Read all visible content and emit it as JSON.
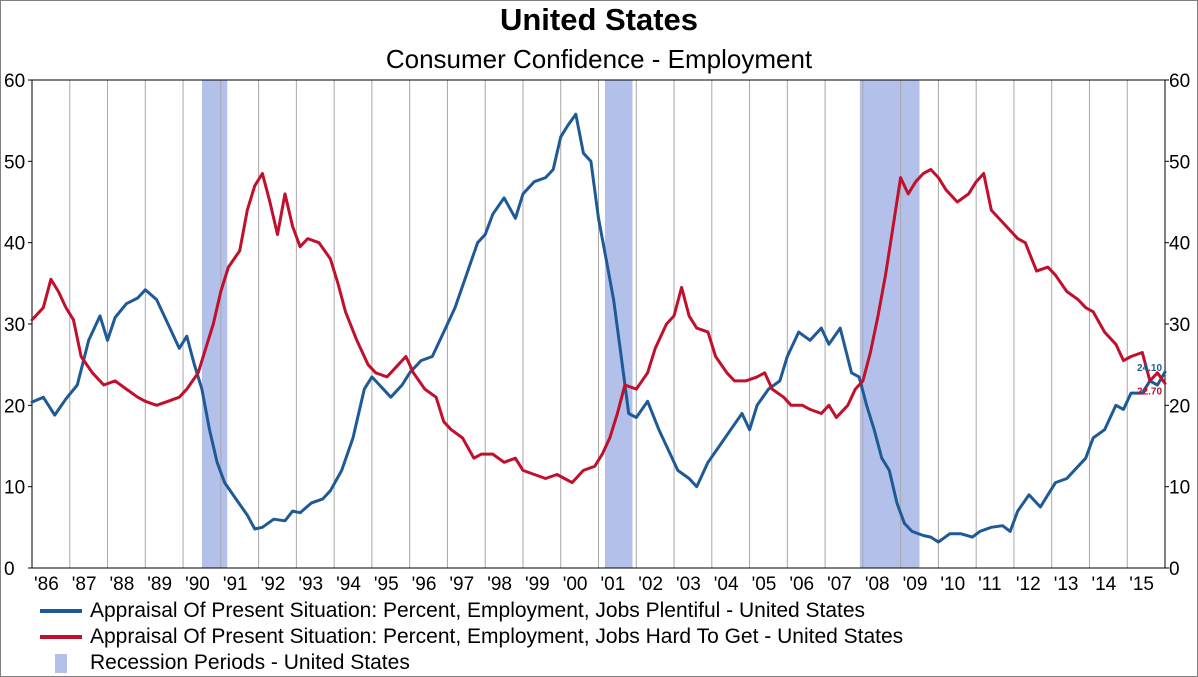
{
  "chart_data": {
    "type": "line",
    "title": "United States",
    "subtitle": "Consumer Confidence - Employment",
    "ylim": [
      0,
      60
    ],
    "y_ticks": [
      "0",
      "10",
      "20",
      "30",
      "40",
      "50",
      "60"
    ],
    "x_range": [
      1986.0,
      2016.0
    ],
    "x_tick_labels": [
      "'86",
      "'87",
      "'88",
      "'89",
      "'90",
      "'91",
      "'92",
      "'93",
      "'94",
      "'95",
      "'96",
      "'97",
      "'98",
      "'99",
      "'00",
      "'01",
      "'02",
      "'03",
      "'04",
      "'05",
      "'06",
      "'07",
      "'08",
      "'09",
      "'10",
      "'11",
      "'12",
      "'13",
      "'14",
      "'15"
    ],
    "grid": "vertical",
    "legend_position": "bottom",
    "recessions": {
      "name": "Recession Periods - United States",
      "color": "#b3c0ea",
      "periods": [
        [
          1990.5,
          1991.17
        ],
        [
          2001.17,
          2001.9
        ],
        [
          2007.92,
          2009.5
        ]
      ]
    },
    "series": [
      {
        "name": "Appraisal Of Present Situation: Percent, Employment, Jobs Plentiful - United States",
        "color": "#1f5a96",
        "last_value_label": "24.10",
        "points": [
          [
            1986.0,
            20.4
          ],
          [
            1986.3,
            21.0
          ],
          [
            1986.6,
            18.8
          ],
          [
            1986.9,
            20.8
          ],
          [
            1987.2,
            22.5
          ],
          [
            1987.5,
            28.0
          ],
          [
            1987.8,
            31.0
          ],
          [
            1988.0,
            28.0
          ],
          [
            1988.2,
            30.8
          ],
          [
            1988.5,
            32.5
          ],
          [
            1988.8,
            33.2
          ],
          [
            1989.0,
            34.2
          ],
          [
            1989.3,
            33.0
          ],
          [
            1989.6,
            30.0
          ],
          [
            1989.9,
            27.0
          ],
          [
            1990.1,
            28.5
          ],
          [
            1990.3,
            25.0
          ],
          [
            1990.5,
            22.0
          ],
          [
            1990.7,
            17.0
          ],
          [
            1990.9,
            13.0
          ],
          [
            1991.1,
            10.5
          ],
          [
            1991.4,
            8.5
          ],
          [
            1991.7,
            6.5
          ],
          [
            1991.9,
            4.8
          ],
          [
            1992.1,
            5.0
          ],
          [
            1992.4,
            6.0
          ],
          [
            1992.7,
            5.8
          ],
          [
            1992.9,
            7.0
          ],
          [
            1993.1,
            6.8
          ],
          [
            1993.4,
            8.0
          ],
          [
            1993.7,
            8.5
          ],
          [
            1993.9,
            9.5
          ],
          [
            1994.2,
            12.0
          ],
          [
            1994.5,
            16.0
          ],
          [
            1994.8,
            22.0
          ],
          [
            1995.0,
            23.5
          ],
          [
            1995.2,
            22.5
          ],
          [
            1995.5,
            21.0
          ],
          [
            1995.8,
            22.5
          ],
          [
            1996.0,
            24.0
          ],
          [
            1996.3,
            25.5
          ],
          [
            1996.6,
            26.0
          ],
          [
            1996.9,
            29.0
          ],
          [
            1997.2,
            32.0
          ],
          [
            1997.5,
            36.0
          ],
          [
            1997.8,
            40.0
          ],
          [
            1998.0,
            41.0
          ],
          [
            1998.2,
            43.5
          ],
          [
            1998.5,
            45.5
          ],
          [
            1998.8,
            43.0
          ],
          [
            1999.0,
            46.0
          ],
          [
            1999.3,
            47.5
          ],
          [
            1999.6,
            48.0
          ],
          [
            1999.8,
            49.0
          ],
          [
            2000.0,
            53.0
          ],
          [
            2000.2,
            54.5
          ],
          [
            2000.4,
            55.8
          ],
          [
            2000.6,
            51.0
          ],
          [
            2000.8,
            50.0
          ],
          [
            2001.0,
            43.0
          ],
          [
            2001.2,
            38.0
          ],
          [
            2001.4,
            33.0
          ],
          [
            2001.6,
            26.0
          ],
          [
            2001.8,
            19.0
          ],
          [
            2002.0,
            18.5
          ],
          [
            2002.3,
            20.5
          ],
          [
            2002.6,
            17.0
          ],
          [
            2002.9,
            14.0
          ],
          [
            2003.1,
            12.0
          ],
          [
            2003.4,
            11.0
          ],
          [
            2003.6,
            10.0
          ],
          [
            2003.9,
            13.0
          ],
          [
            2004.2,
            15.0
          ],
          [
            2004.5,
            17.0
          ],
          [
            2004.8,
            19.0
          ],
          [
            2005.0,
            17.0
          ],
          [
            2005.2,
            20.0
          ],
          [
            2005.5,
            22.0
          ],
          [
            2005.8,
            23.0
          ],
          [
            2006.0,
            26.0
          ],
          [
            2006.3,
            29.0
          ],
          [
            2006.6,
            28.0
          ],
          [
            2006.9,
            29.5
          ],
          [
            2007.1,
            27.5
          ],
          [
            2007.4,
            29.5
          ],
          [
            2007.7,
            24.0
          ],
          [
            2007.9,
            23.5
          ],
          [
            2008.1,
            20.0
          ],
          [
            2008.3,
            17.0
          ],
          [
            2008.5,
            13.5
          ],
          [
            2008.7,
            12.0
          ],
          [
            2008.9,
            8.0
          ],
          [
            2009.1,
            5.5
          ],
          [
            2009.3,
            4.5
          ],
          [
            2009.6,
            4.0
          ],
          [
            2009.8,
            3.8
          ],
          [
            2010.0,
            3.2
          ],
          [
            2010.3,
            4.2
          ],
          [
            2010.6,
            4.2
          ],
          [
            2010.9,
            3.8
          ],
          [
            2011.1,
            4.5
          ],
          [
            2011.4,
            5.0
          ],
          [
            2011.7,
            5.2
          ],
          [
            2011.9,
            4.5
          ],
          [
            2012.1,
            7.0
          ],
          [
            2012.4,
            9.0
          ],
          [
            2012.7,
            7.5
          ],
          [
            2012.9,
            9.0
          ],
          [
            2013.1,
            10.5
          ],
          [
            2013.4,
            11.0
          ],
          [
            2013.7,
            12.5
          ],
          [
            2013.9,
            13.5
          ],
          [
            2014.1,
            16.0
          ],
          [
            2014.4,
            17.0
          ],
          [
            2014.7,
            20.0
          ],
          [
            2014.9,
            19.5
          ],
          [
            2015.1,
            21.5
          ],
          [
            2015.4,
            21.5
          ],
          [
            2015.6,
            23.0
          ],
          [
            2015.8,
            22.5
          ],
          [
            2016.0,
            24.1
          ]
        ]
      },
      {
        "name": "Appraisal Of Present Situation: Percent, Employment, Jobs Hard To Get - United States",
        "color": "#c0102c",
        "last_value_label": "22.70",
        "points": [
          [
            1986.0,
            30.5
          ],
          [
            1986.3,
            32.0
          ],
          [
            1986.5,
            35.5
          ],
          [
            1986.7,
            34.0
          ],
          [
            1986.9,
            32.0
          ],
          [
            1987.1,
            30.5
          ],
          [
            1987.3,
            26.0
          ],
          [
            1987.6,
            24.0
          ],
          [
            1987.9,
            22.5
          ],
          [
            1988.2,
            23.0
          ],
          [
            1988.5,
            22.0
          ],
          [
            1988.8,
            21.0
          ],
          [
            1989.0,
            20.5
          ],
          [
            1989.3,
            20.0
          ],
          [
            1989.6,
            20.5
          ],
          [
            1989.9,
            21.0
          ],
          [
            1990.1,
            22.0
          ],
          [
            1990.4,
            24.0
          ],
          [
            1990.6,
            27.0
          ],
          [
            1990.8,
            30.0
          ],
          [
            1991.0,
            34.0
          ],
          [
            1991.2,
            37.0
          ],
          [
            1991.5,
            39.0
          ],
          [
            1991.7,
            44.0
          ],
          [
            1991.9,
            47.0
          ],
          [
            1992.1,
            48.5
          ],
          [
            1992.3,
            45.0
          ],
          [
            1992.5,
            41.0
          ],
          [
            1992.7,
            46.0
          ],
          [
            1992.9,
            42.0
          ],
          [
            1993.1,
            39.5
          ],
          [
            1993.3,
            40.5
          ],
          [
            1993.6,
            40.0
          ],
          [
            1993.9,
            38.0
          ],
          [
            1994.1,
            35.0
          ],
          [
            1994.3,
            31.5
          ],
          [
            1994.6,
            28.0
          ],
          [
            1994.9,
            25.0
          ],
          [
            1995.1,
            24.0
          ],
          [
            1995.4,
            23.5
          ],
          [
            1995.7,
            25.0
          ],
          [
            1995.9,
            26.0
          ],
          [
            1996.1,
            24.0
          ],
          [
            1996.4,
            22.0
          ],
          [
            1996.7,
            21.0
          ],
          [
            1996.9,
            18.0
          ],
          [
            1997.1,
            17.0
          ],
          [
            1997.4,
            16.0
          ],
          [
            1997.7,
            13.5
          ],
          [
            1997.9,
            14.0
          ],
          [
            1998.2,
            14.0
          ],
          [
            1998.5,
            13.0
          ],
          [
            1998.8,
            13.5
          ],
          [
            1999.0,
            12.0
          ],
          [
            1999.3,
            11.5
          ],
          [
            1999.6,
            11.0
          ],
          [
            1999.9,
            11.5
          ],
          [
            2000.1,
            11.0
          ],
          [
            2000.3,
            10.5
          ],
          [
            2000.6,
            12.0
          ],
          [
            2000.9,
            12.5
          ],
          [
            2001.1,
            14.0
          ],
          [
            2001.3,
            16.0
          ],
          [
            2001.5,
            19.0
          ],
          [
            2001.7,
            22.5
          ],
          [
            2002.0,
            22.0
          ],
          [
            2002.3,
            24.0
          ],
          [
            2002.5,
            27.0
          ],
          [
            2002.8,
            30.0
          ],
          [
            2003.0,
            31.0
          ],
          [
            2003.2,
            34.5
          ],
          [
            2003.4,
            31.0
          ],
          [
            2003.6,
            29.5
          ],
          [
            2003.9,
            29.0
          ],
          [
            2004.1,
            26.0
          ],
          [
            2004.4,
            24.0
          ],
          [
            2004.6,
            23.0
          ],
          [
            2004.9,
            23.0
          ],
          [
            2005.2,
            23.5
          ],
          [
            2005.4,
            24.0
          ],
          [
            2005.6,
            22.0
          ],
          [
            2005.9,
            21.0
          ],
          [
            2006.1,
            20.0
          ],
          [
            2006.4,
            20.0
          ],
          [
            2006.6,
            19.5
          ],
          [
            2006.9,
            19.0
          ],
          [
            2007.1,
            20.0
          ],
          [
            2007.3,
            18.5
          ],
          [
            2007.6,
            20.0
          ],
          [
            2007.8,
            22.0
          ],
          [
            2008.0,
            23.0
          ],
          [
            2008.2,
            26.5
          ],
          [
            2008.4,
            31.0
          ],
          [
            2008.6,
            36.0
          ],
          [
            2008.8,
            42.0
          ],
          [
            2009.0,
            48.0
          ],
          [
            2009.2,
            46.0
          ],
          [
            2009.4,
            47.5
          ],
          [
            2009.6,
            48.5
          ],
          [
            2009.8,
            49.0
          ],
          [
            2010.0,
            48.0
          ],
          [
            2010.2,
            46.5
          ],
          [
            2010.5,
            45.0
          ],
          [
            2010.8,
            46.0
          ],
          [
            2011.0,
            47.5
          ],
          [
            2011.2,
            48.5
          ],
          [
            2011.4,
            44.0
          ],
          [
            2011.6,
            43.0
          ],
          [
            2011.9,
            41.5
          ],
          [
            2012.1,
            40.5
          ],
          [
            2012.3,
            40.0
          ],
          [
            2012.6,
            36.5
          ],
          [
            2012.9,
            37.0
          ],
          [
            2013.1,
            36.0
          ],
          [
            2013.4,
            34.0
          ],
          [
            2013.7,
            33.0
          ],
          [
            2013.9,
            32.0
          ],
          [
            2014.1,
            31.5
          ],
          [
            2014.4,
            29.0
          ],
          [
            2014.7,
            27.5
          ],
          [
            2014.9,
            25.5
          ],
          [
            2015.1,
            26.0
          ],
          [
            2015.4,
            26.5
          ],
          [
            2015.6,
            23.0
          ],
          [
            2015.8,
            24.0
          ],
          [
            2016.0,
            22.7
          ]
        ]
      }
    ]
  }
}
